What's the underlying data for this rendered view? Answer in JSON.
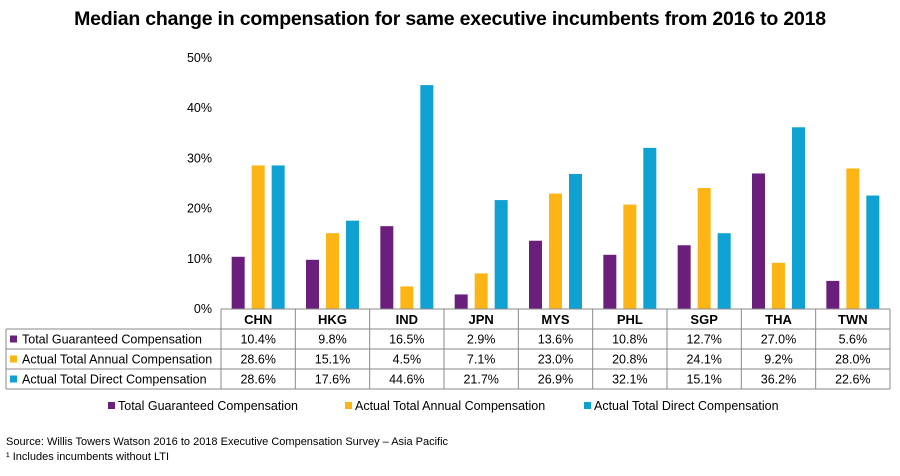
{
  "chart_data": {
    "type": "bar",
    "title": "Median change in compensation for same executive incumbents from 2016 to 2018",
    "categories": [
      "CHN",
      "HKG",
      "IND",
      "JPN",
      "MYS",
      "PHL",
      "SGP",
      "THA",
      "TWN"
    ],
    "y_ticks": [
      "0%",
      "10%",
      "20%",
      "30%",
      "40%",
      "50%"
    ],
    "ylim": [
      0,
      50
    ],
    "series": [
      {
        "name": "Total Guaranteed Compensation",
        "color": "#6b1f7c",
        "values": [
          10.4,
          9.8,
          16.5,
          2.9,
          13.6,
          10.8,
          12.7,
          27.0,
          5.6
        ],
        "labels": [
          "10.4%",
          "9.8%",
          "16.5%",
          "2.9%",
          "13.6%",
          "10.8%",
          "12.7%",
          "27.0%",
          "5.6%"
        ]
      },
      {
        "name": "Actual Total Annual Compensation",
        "color": "#fdb515",
        "values": [
          28.6,
          15.1,
          4.5,
          7.1,
          23.0,
          20.8,
          24.1,
          9.2,
          28.0
        ],
        "labels": [
          "28.6%",
          "15.1%",
          "4.5%",
          "7.1%",
          "23.0%",
          "20.8%",
          "24.1%",
          "9.2%",
          "28.0%"
        ]
      },
      {
        "name": "Actual Total Direct Compensation",
        "color": "#0ea1d2",
        "values": [
          28.6,
          17.6,
          44.6,
          21.7,
          26.9,
          32.1,
          15.1,
          36.2,
          22.6
        ],
        "labels": [
          "28.6%",
          "17.6%",
          "44.6%",
          "21.7%",
          "26.9%",
          "32.1%",
          "15.1%",
          "36.2%",
          "22.6%"
        ]
      }
    ],
    "legend_position": "bottom",
    "grid": false
  },
  "footnotes": {
    "source": "Source: Willis Towers Watson 2016 to 2018 Executive Compensation Survey – Asia Pacific",
    "note": "¹ Includes incumbents without LTI"
  }
}
